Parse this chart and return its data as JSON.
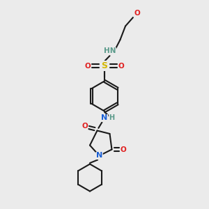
{
  "background_color": "#ebebeb",
  "bond_color": "#1a1a1a",
  "atom_colors": {
    "N": "#1a5fd4",
    "O": "#e02020",
    "S": "#d4b800",
    "C": "#1a1a1a",
    "H": "#5a9a8a"
  },
  "figsize": [
    3.0,
    3.0
  ],
  "dpi": 100
}
